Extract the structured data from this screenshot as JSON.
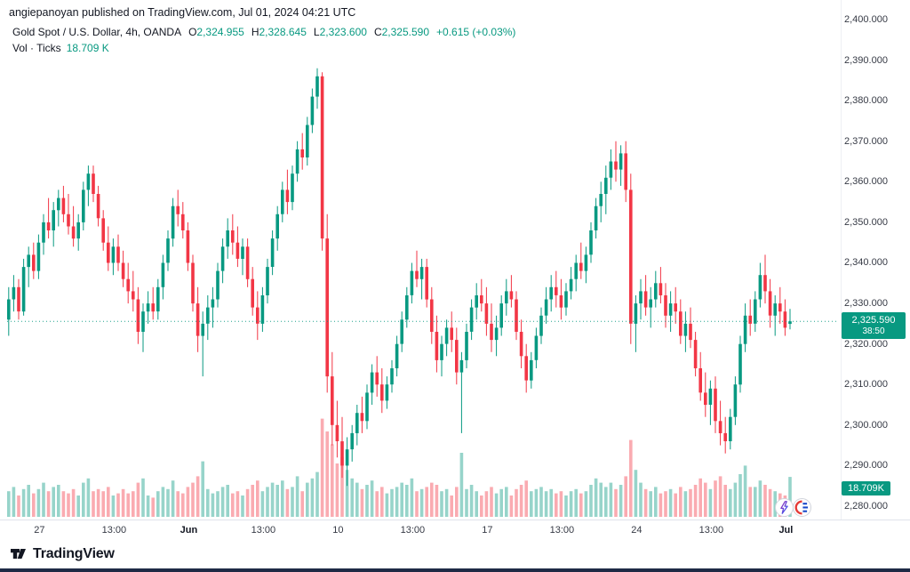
{
  "attribution": "angiepanoyan published on TradingView.com, Jul 01, 2024 04:21 UTC",
  "legend": {
    "symbol": "Gold Spot / U.S. Dollar, 4h, OANDA",
    "o_label": "O",
    "o": "2,324.955",
    "h_label": "H",
    "h": "2,328.645",
    "l_label": "L",
    "l": "2,323.600",
    "c_label": "C",
    "c": "2,325.590",
    "change": "+0.615 (+0.03%)",
    "vol_label": "Vol · Ticks",
    "vol_value": "18.709 K"
  },
  "badges": {
    "price": "2,325.590",
    "countdown": "38:50",
    "volume": "18.709K"
  },
  "footer": {
    "brand": "TradingView"
  },
  "colors": {
    "up": "#089981",
    "down": "#f23645",
    "vol_up": "rgba(8,153,129,0.42)",
    "vol_down": "rgba(242,54,69,0.42)",
    "badge": "#089981",
    "axis_text": "#363a45",
    "dark_text": "#131722",
    "bottom_bar": "#1e2a45"
  },
  "chart_data": {
    "type": "candlestick+volume",
    "title": "Gold Spot / U.S. Dollar, 4h, OANDA",
    "ylabel": "Price (USD)",
    "y_range": [
      2280,
      2400
    ],
    "current_price": 2325.59,
    "current_volume_k": 18.709,
    "y_ticks": [
      "2,400.000",
      "2,390.000",
      "2,380.000",
      "2,370.000",
      "2,360.000",
      "2,350.000",
      "2,340.000",
      "2,330.000",
      "2,320.000",
      "2,310.000",
      "2,300.000",
      "2,290.000",
      "2,280.000"
    ],
    "x_ticks": [
      {
        "text": "27",
        "index": 6,
        "bold": false
      },
      {
        "text": "13:00",
        "index": 21,
        "bold": false
      },
      {
        "text": "Jun",
        "index": 36,
        "bold": true
      },
      {
        "text": "13:00",
        "index": 51,
        "bold": false
      },
      {
        "text": "10",
        "index": 66,
        "bold": false
      },
      {
        "text": "13:00",
        "index": 81,
        "bold": false
      },
      {
        "text": "17",
        "index": 96,
        "bold": false
      },
      {
        "text": "13:00",
        "index": 111,
        "bold": false
      },
      {
        "text": "24",
        "index": 126,
        "bold": false
      },
      {
        "text": "13:00",
        "index": 141,
        "bold": false
      },
      {
        "text": "Jul",
        "index": 156,
        "bold": true
      }
    ],
    "ohlc_format": [
      "open",
      "high",
      "low",
      "close"
    ],
    "ohlc": [
      [
        2326,
        2334,
        2322,
        2331
      ],
      [
        2331,
        2337,
        2328,
        2334
      ],
      [
        2334,
        2336,
        2326,
        2328
      ],
      [
        2328,
        2341,
        2327,
        2339
      ],
      [
        2339,
        2344,
        2334,
        2342
      ],
      [
        2342,
        2345,
        2336,
        2338
      ],
      [
        2338,
        2347,
        2336,
        2345
      ],
      [
        2345,
        2352,
        2342,
        2350
      ],
      [
        2350,
        2356,
        2346,
        2348
      ],
      [
        2348,
        2355,
        2344,
        2353
      ],
      [
        2353,
        2358,
        2349,
        2356
      ],
      [
        2356,
        2359,
        2350,
        2352
      ],
      [
        2352,
        2357,
        2347,
        2349
      ],
      [
        2349,
        2354,
        2344,
        2346
      ],
      [
        2346,
        2352,
        2343,
        2350
      ],
      [
        2350,
        2360,
        2348,
        2358
      ],
      [
        2358,
        2364,
        2354,
        2362
      ],
      [
        2362,
        2364,
        2355,
        2357
      ],
      [
        2357,
        2359,
        2349,
        2351
      ],
      [
        2351,
        2353,
        2343,
        2345
      ],
      [
        2345,
        2349,
        2338,
        2340
      ],
      [
        2340,
        2346,
        2337,
        2344
      ],
      [
        2344,
        2347,
        2338,
        2340
      ],
      [
        2340,
        2343,
        2334,
        2336
      ],
      [
        2336,
        2340,
        2330,
        2333
      ],
      [
        2333,
        2338,
        2328,
        2331
      ],
      [
        2331,
        2334,
        2320,
        2323
      ],
      [
        2323,
        2330,
        2318,
        2328
      ],
      [
        2328,
        2333,
        2325,
        2330
      ],
      [
        2330,
        2334,
        2326,
        2328
      ],
      [
        2328,
        2336,
        2326,
        2334
      ],
      [
        2334,
        2342,
        2331,
        2340
      ],
      [
        2340,
        2348,
        2338,
        2346
      ],
      [
        2346,
        2356,
        2344,
        2354
      ],
      [
        2354,
        2358,
        2349,
        2352
      ],
      [
        2352,
        2355,
        2346,
        2348
      ],
      [
        2348,
        2350,
        2338,
        2340
      ],
      [
        2340,
        2342,
        2328,
        2330
      ],
      [
        2330,
        2334,
        2318,
        2322
      ],
      [
        2322,
        2328,
        2312,
        2325
      ],
      [
        2325,
        2332,
        2321,
        2329
      ],
      [
        2329,
        2334,
        2324,
        2331
      ],
      [
        2331,
        2340,
        2329,
        2338
      ],
      [
        2338,
        2346,
        2335,
        2344
      ],
      [
        2344,
        2351,
        2341,
        2348
      ],
      [
        2348,
        2352,
        2342,
        2345
      ],
      [
        2345,
        2349,
        2339,
        2341
      ],
      [
        2341,
        2346,
        2337,
        2344
      ],
      [
        2344,
        2346,
        2334,
        2336
      ],
      [
        2336,
        2339,
        2327,
        2329
      ],
      [
        2329,
        2333,
        2321,
        2325
      ],
      [
        2325,
        2334,
        2323,
        2332
      ],
      [
        2332,
        2341,
        2330,
        2339
      ],
      [
        2339,
        2348,
        2337,
        2346
      ],
      [
        2346,
        2354,
        2343,
        2352
      ],
      [
        2352,
        2360,
        2350,
        2358
      ],
      [
        2358,
        2363,
        2352,
        2355
      ],
      [
        2355,
        2364,
        2353,
        2362
      ],
      [
        2362,
        2370,
        2360,
        2368
      ],
      [
        2368,
        2372,
        2363,
        2366
      ],
      [
        2366,
        2376,
        2364,
        2374
      ],
      [
        2374,
        2383,
        2372,
        2381
      ],
      [
        2381,
        2388,
        2378,
        2386
      ],
      [
        2386,
        2387,
        2343,
        2346
      ],
      [
        2346,
        2352,
        2308,
        2312
      ],
      [
        2312,
        2318,
        2295,
        2300
      ],
      [
        2300,
        2306,
        2292,
        2296
      ],
      [
        2296,
        2302,
        2287,
        2290
      ],
      [
        2290,
        2297,
        2285,
        2294
      ],
      [
        2294,
        2300,
        2291,
        2298
      ],
      [
        2298,
        2305,
        2295,
        2303
      ],
      [
        2303,
        2307,
        2298,
        2301
      ],
      [
        2301,
        2310,
        2299,
        2308
      ],
      [
        2308,
        2315,
        2305,
        2313
      ],
      [
        2313,
        2317,
        2307,
        2310
      ],
      [
        2310,
        2314,
        2303,
        2306
      ],
      [
        2306,
        2312,
        2304,
        2310
      ],
      [
        2310,
        2316,
        2308,
        2314
      ],
      [
        2314,
        2322,
        2312,
        2320
      ],
      [
        2320,
        2328,
        2318,
        2326
      ],
      [
        2326,
        2334,
        2324,
        2332
      ],
      [
        2332,
        2340,
        2330,
        2338
      ],
      [
        2338,
        2343,
        2334,
        2336
      ],
      [
        2336,
        2341,
        2331,
        2339
      ],
      [
        2339,
        2341,
        2329,
        2331
      ],
      [
        2331,
        2334,
        2320,
        2323
      ],
      [
        2323,
        2327,
        2313,
        2316
      ],
      [
        2316,
        2322,
        2312,
        2320
      ],
      [
        2320,
        2326,
        2317,
        2324
      ],
      [
        2324,
        2328,
        2318,
        2321
      ],
      [
        2321,
        2324,
        2310,
        2313
      ],
      [
        2313,
        2318,
        2298,
        2316
      ],
      [
        2316,
        2325,
        2314,
        2323
      ],
      [
        2323,
        2331,
        2321,
        2329
      ],
      [
        2329,
        2335,
        2326,
        2332
      ],
      [
        2332,
        2336,
        2328,
        2330
      ],
      [
        2330,
        2334,
        2322,
        2325
      ],
      [
        2325,
        2330,
        2318,
        2321
      ],
      [
        2321,
        2327,
        2317,
        2324
      ],
      [
        2324,
        2332,
        2322,
        2330
      ],
      [
        2330,
        2336,
        2327,
        2333
      ],
      [
        2333,
        2337,
        2329,
        2331
      ],
      [
        2331,
        2333,
        2321,
        2323
      ],
      [
        2323,
        2326,
        2314,
        2317
      ],
      [
        2317,
        2320,
        2308,
        2311
      ],
      [
        2311,
        2318,
        2309,
        2316
      ],
      [
        2316,
        2324,
        2314,
        2322
      ],
      [
        2322,
        2329,
        2320,
        2327
      ],
      [
        2327,
        2334,
        2325,
        2331
      ],
      [
        2331,
        2337,
        2328,
        2334
      ],
      [
        2334,
        2338,
        2329,
        2332
      ],
      [
        2332,
        2336,
        2326,
        2329
      ],
      [
        2329,
        2335,
        2327,
        2333
      ],
      [
        2333,
        2339,
        2331,
        2336
      ],
      [
        2336,
        2342,
        2333,
        2340
      ],
      [
        2340,
        2345,
        2336,
        2338
      ],
      [
        2338,
        2344,
        2335,
        2342
      ],
      [
        2342,
        2350,
        2340,
        2348
      ],
      [
        2348,
        2356,
        2346,
        2354
      ],
      [
        2354,
        2360,
        2350,
        2357
      ],
      [
        2357,
        2364,
        2352,
        2361
      ],
      [
        2361,
        2368,
        2358,
        2365
      ],
      [
        2365,
        2370,
        2360,
        2363
      ],
      [
        2363,
        2369,
        2359,
        2367
      ],
      [
        2367,
        2370,
        2355,
        2358
      ],
      [
        2358,
        2362,
        2320,
        2325
      ],
      [
        2325,
        2332,
        2318,
        2330
      ],
      [
        2330,
        2336,
        2326,
        2333
      ],
      [
        2333,
        2337,
        2327,
        2329
      ],
      [
        2329,
        2334,
        2324,
        2331
      ],
      [
        2331,
        2338,
        2329,
        2335
      ],
      [
        2335,
        2339,
        2330,
        2332
      ],
      [
        2332,
        2335,
        2324,
        2327
      ],
      [
        2327,
        2333,
        2323,
        2330
      ],
      [
        2330,
        2334,
        2325,
        2328
      ],
      [
        2328,
        2331,
        2320,
        2322
      ],
      [
        2322,
        2328,
        2318,
        2325
      ],
      [
        2325,
        2329,
        2319,
        2321
      ],
      [
        2321,
        2323,
        2312,
        2314
      ],
      [
        2314,
        2318,
        2306,
        2308
      ],
      [
        2308,
        2313,
        2302,
        2305
      ],
      [
        2305,
        2311,
        2300,
        2309
      ],
      [
        2309,
        2312,
        2298,
        2301
      ],
      [
        2301,
        2306,
        2295,
        2298
      ],
      [
        2298,
        2302,
        2293,
        2296
      ],
      [
        2296,
        2304,
        2294,
        2302
      ],
      [
        2302,
        2312,
        2300,
        2310
      ],
      [
        2310,
        2322,
        2308,
        2320
      ],
      [
        2320,
        2330,
        2318,
        2327
      ],
      [
        2327,
        2331,
        2322,
        2325
      ],
      [
        2325,
        2333,
        2323,
        2331
      ],
      [
        2331,
        2340,
        2329,
        2337
      ],
      [
        2337,
        2342,
        2330,
        2333
      ],
      [
        2333,
        2336,
        2324,
        2327
      ],
      [
        2327,
        2332,
        2322,
        2330
      ],
      [
        2330,
        2334,
        2325,
        2328
      ],
      [
        2328,
        2331,
        2322,
        2324
      ],
      [
        2324.955,
        2328.645,
        2323.6,
        2325.59
      ]
    ],
    "volumes_k": [
      12,
      14,
      10,
      13,
      15,
      11,
      13,
      16,
      12,
      14,
      15,
      12,
      11,
      13,
      10,
      16,
      18,
      12,
      13,
      12,
      14,
      10,
      11,
      13,
      11,
      12,
      16,
      18,
      10,
      9,
      12,
      14,
      13,
      17,
      12,
      11,
      14,
      16,
      19,
      26,
      13,
      11,
      12,
      14,
      15,
      11,
      12,
      10,
      13,
      15,
      17,
      12,
      14,
      16,
      15,
      17,
      13,
      14,
      19,
      12,
      16,
      18,
      21,
      46,
      40,
      34,
      25,
      28,
      22,
      18,
      16,
      13,
      15,
      17,
      12,
      14,
      11,
      13,
      14,
      16,
      15,
      18,
      12,
      13,
      14,
      16,
      15,
      12,
      13,
      10,
      14,
      30,
      13,
      15,
      12,
      10,
      12,
      14,
      11,
      13,
      14,
      10,
      13,
      15,
      17,
      12,
      13,
      14,
      12,
      13,
      11,
      12,
      10,
      12,
      13,
      11,
      12,
      15,
      18,
      16,
      14,
      16,
      13,
      15,
      19,
      36,
      22,
      16,
      13,
      12,
      14,
      11,
      12,
      13,
      11,
      14,
      12,
      13,
      15,
      18,
      16,
      13,
      17,
      19,
      15,
      13,
      16,
      20,
      24,
      14,
      14,
      17,
      15,
      13,
      12,
      11,
      10,
      18.709
    ]
  }
}
